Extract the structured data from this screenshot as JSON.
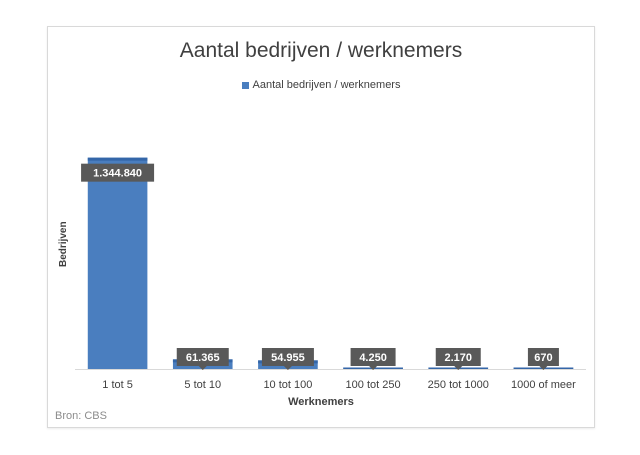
{
  "chart_data": {
    "type": "bar",
    "title": "Aantal bedrijven / werknemers",
    "xlabel": "Werknemers",
    "ylabel": "Bedrijven",
    "categories": [
      "1 tot 5",
      "5 tot 10",
      "10 tot 100",
      "100 tot 250",
      "250 tot 1000",
      "1000 of meer"
    ],
    "series": [
      {
        "name": "Aantal bedrijven / werknemers",
        "values": [
          1344840,
          61365,
          54955,
          4250,
          2170,
          670
        ],
        "data_labels": [
          "1.344.840",
          "61.365",
          "54.955",
          "4.250",
          "2.170",
          "670"
        ]
      }
    ],
    "ylim": [
      0,
      1400000
    ],
    "grid": false,
    "legend_position": "top",
    "colors": {
      "bar": "#4a7ebf",
      "bar_top": "#3466a8",
      "label_bg": "#595959",
      "axis": "#d9d9d9"
    }
  },
  "source": "Bron: CBS"
}
